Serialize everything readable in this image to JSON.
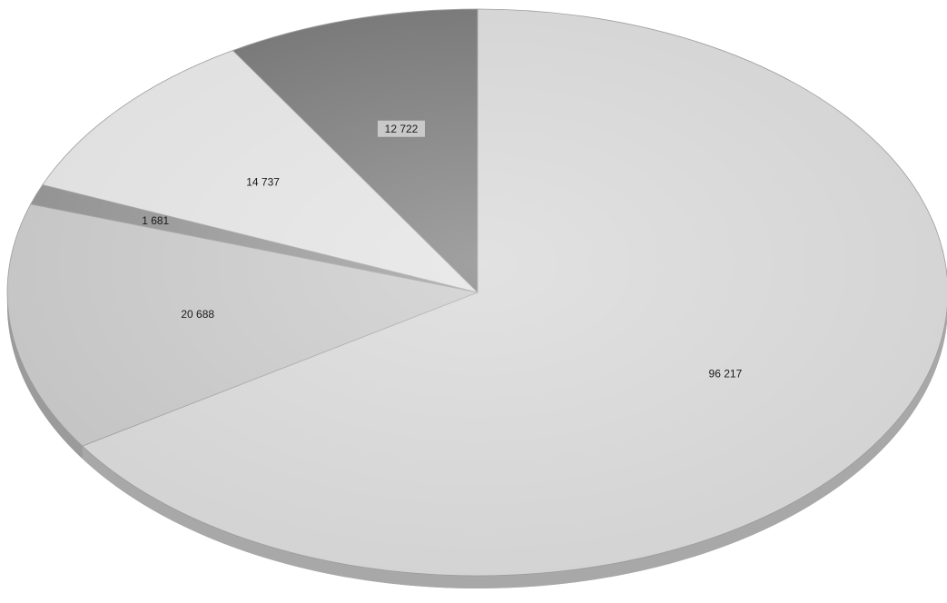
{
  "chart_data": {
    "type": "pie",
    "title": "",
    "start_angle_deg": -90,
    "direction": "clockwise",
    "three_d": true,
    "slices": [
      {
        "label": "96 217",
        "value": 96217,
        "color": "#d2d2d2",
        "label_boxed": false
      },
      {
        "label": "20 688",
        "value": 20688,
        "color": "#c2c2c2",
        "label_boxed": false
      },
      {
        "label": "1 681",
        "value": 1681,
        "color": "#8c8c8c",
        "label_boxed": false
      },
      {
        "label": "14 737",
        "value": 14737,
        "color": "#dedede",
        "label_boxed": false
      },
      {
        "label": "12 722",
        "value": 12722,
        "color": "#6e6e6e",
        "label_boxed": true
      }
    ]
  }
}
